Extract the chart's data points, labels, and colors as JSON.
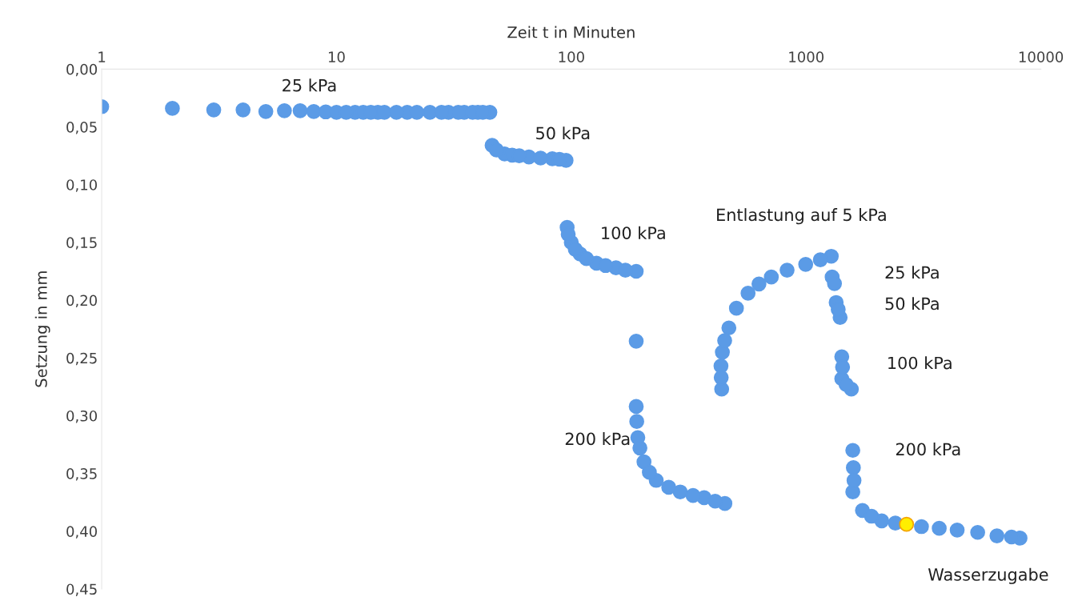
{
  "chart_data": {
    "type": "scatter",
    "xlabel": "Zeit t in Minuten",
    "ylabel": "Setzung in mm",
    "log": "x",
    "marker": "circle",
    "grid": false,
    "legend": false,
    "xlim": [
      1,
      10000
    ],
    "xticks": [
      1,
      10,
      100,
      1000,
      10000
    ],
    "ylim": [
      0.45,
      0
    ],
    "yticks": [
      {
        "value": 0,
        "label": "0,00"
      },
      {
        "value": 0.05,
        "label": "0,05"
      },
      {
        "value": 0.1,
        "label": "0,10"
      },
      {
        "value": 0.15,
        "label": "0,15"
      },
      {
        "value": 0.2,
        "label": "0,20"
      },
      {
        "value": 0.25,
        "label": "0,25"
      },
      {
        "value": 0.3,
        "label": "0,30"
      },
      {
        "value": 0.35,
        "label": "0,35"
      },
      {
        "value": 0.4,
        "label": "0,40"
      },
      {
        "value": 0.45,
        "label": "0,45"
      }
    ],
    "series": [
      {
        "color": "#5b9be6",
        "x": [
          1,
          2,
          3,
          4,
          5,
          6,
          7,
          8,
          9,
          10,
          12,
          15,
          20,
          25,
          30,
          35,
          40,
          45,
          46,
          52,
          66,
          83,
          95,
          96,
          100,
          109,
          128,
          155,
          189,
          189,
          189,
          192,
          204,
          230,
          291,
          368,
          451,
          437,
          434,
          469,
          566,
          711,
          996,
          1280,
          1291,
          1321,
          1343,
          1396,
          1419,
          1419,
          1559,
          1581,
          1581,
          1738,
          2100,
          2678,
          3690,
          5380,
          8150,
          11,
          13,
          14,
          16,
          18,
          22,
          28,
          33,
          38,
          42,
          48,
          56,
          60,
          74,
          89,
          97,
          104,
          116,
          140,
          170,
          190,
          196,
          215,
          260,
          330,
          410,
          435,
          440,
          450,
          505,
          630,
          830,
          1150,
          1370,
          1430,
          1480,
          1590,
          1600,
          1900,
          2400,
          3100,
          4400,
          6500,
          7500
        ],
        "values": [
          0.0325,
          0.034,
          0.0353,
          0.0353,
          0.0367,
          0.036,
          0.036,
          0.0367,
          0.037,
          0.0374,
          0.0374,
          0.0374,
          0.0374,
          0.0374,
          0.0374,
          0.0374,
          0.0374,
          0.0374,
          0.066,
          0.0734,
          0.076,
          0.0776,
          0.079,
          0.137,
          0.15,
          0.16,
          0.168,
          0.172,
          0.175,
          0.2355,
          0.292,
          0.319,
          0.34,
          0.356,
          0.366,
          0.371,
          0.376,
          0.277,
          0.257,
          0.224,
          0.194,
          0.18,
          0.169,
          0.162,
          0.18,
          0.1856,
          0.202,
          0.215,
          0.249,
          0.268,
          0.277,
          0.33,
          0.366,
          0.382,
          0.391,
          null,
          0.3975,
          0.401,
          0.406,
          0.0374,
          0.0374,
          0.0374,
          0.0374,
          0.0374,
          0.0374,
          0.0374,
          0.0374,
          0.0374,
          0.0374,
          0.07,
          0.0745,
          0.075,
          0.077,
          0.078,
          0.143,
          0.156,
          0.164,
          0.17,
          0.174,
          0.305,
          0.328,
          0.349,
          0.362,
          0.369,
          0.374,
          0.267,
          0.245,
          0.235,
          0.207,
          0.186,
          0.174,
          0.165,
          0.208,
          0.258,
          0.273,
          0.345,
          0.356,
          0.387,
          0.393,
          0.396,
          0.399,
          0.404,
          0.405
        ]
      },
      {
        "color": "#ffee00",
        "x": [
          2678
        ],
        "values": [
          0.394
        ]
      }
    ],
    "annotations": [
      "25 kPa",
      "50 kPa",
      "100 kPa",
      "Entlastung auf 5 kPa",
      "25 kPa",
      "50 kPa",
      "100 kPa",
      "200 kPa",
      "200 kPa",
      "Wasserzugabe"
    ]
  }
}
